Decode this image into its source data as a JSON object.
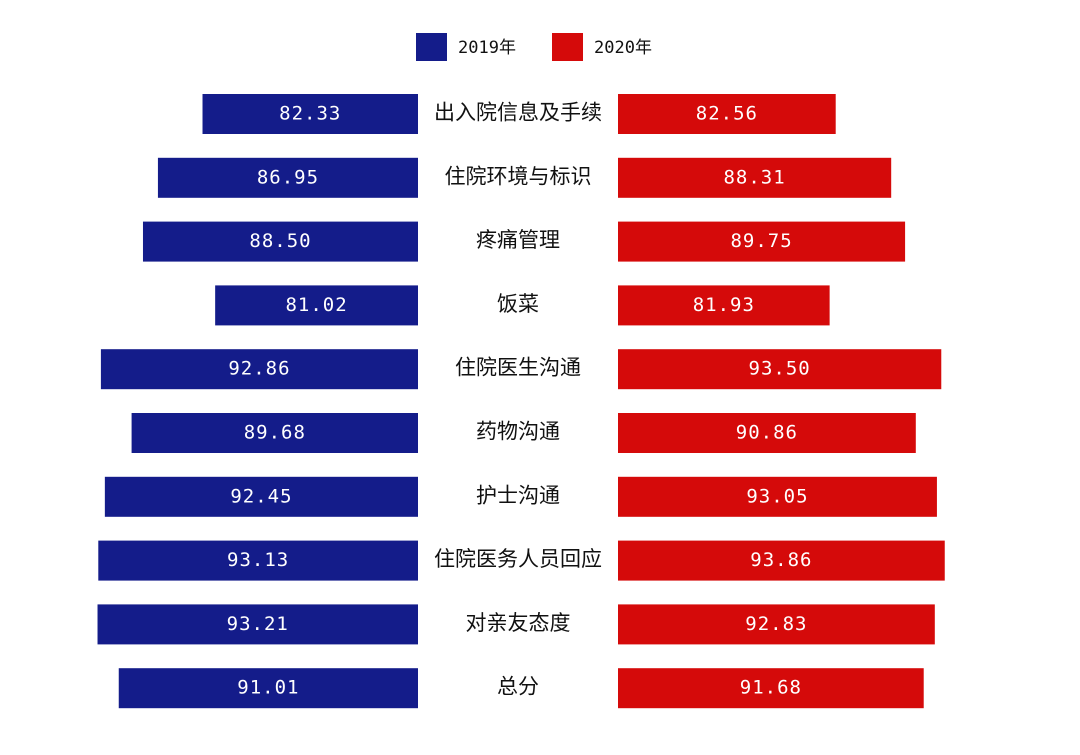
{
  "chart_data": {
    "type": "butterfly",
    "categories": [
      "出入院信息及手续",
      "住院环境与标识",
      "疼痛管理",
      "饭菜",
      "住院医生沟通",
      "药物沟通",
      "护士沟通",
      "住院医务人员回应",
      "对亲友态度",
      "总分"
    ],
    "series": [
      {
        "name": "2019年",
        "color": "#141c8a",
        "values": [
          82.33,
          86.95,
          88.5,
          81.02,
          92.86,
          89.68,
          92.45,
          93.13,
          93.21,
          91.01
        ],
        "value_labels": [
          "82.33",
          "86.95",
          "88.50",
          "81.02",
          "92.86",
          "89.68",
          "92.45",
          "93.13",
          "93.21",
          "91.01"
        ]
      },
      {
        "name": "2020年",
        "color": "#d50a0a",
        "values": [
          82.56,
          88.31,
          89.75,
          81.93,
          93.5,
          90.86,
          93.05,
          93.86,
          92.83,
          91.68
        ],
        "value_labels": [
          "82.56",
          "88.31",
          "89.75",
          "81.93",
          "93.50",
          "90.86",
          "93.05",
          "93.86",
          "92.83",
          "91.68"
        ]
      }
    ],
    "xlim": [
      60,
      95
    ]
  }
}
